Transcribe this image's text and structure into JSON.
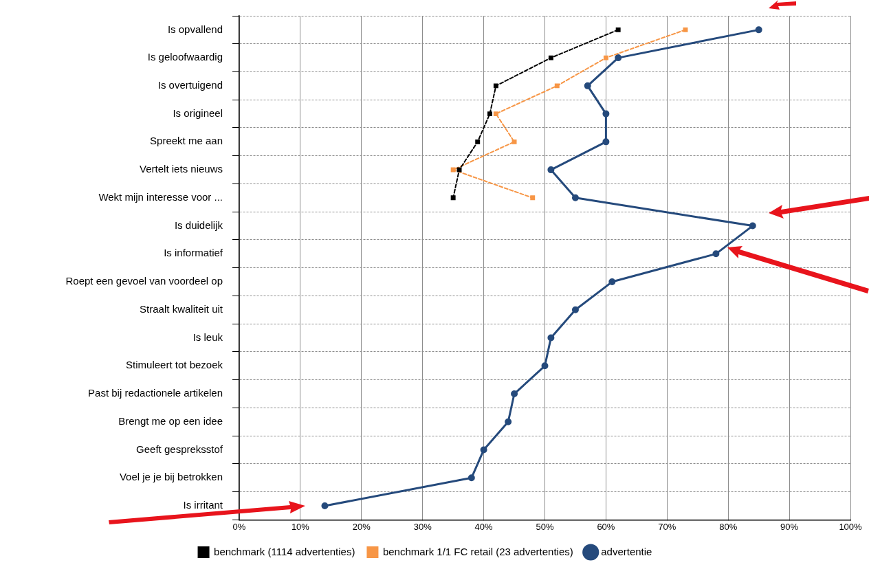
{
  "chart_data": {
    "type": "line",
    "orientation": "horizontal",
    "categories": [
      "Is opvallend",
      "Is geloofwaardig",
      "Is overtuigend",
      "Is origineel",
      "Spreekt me aan",
      "Vertelt iets nieuws",
      "Wekt mijn interesse voor ...",
      "Is duidelijk",
      "Is informatief",
      "Roept een gevoel van voordeel op",
      "Straalt kwaliteit uit",
      "Is leuk",
      "Stimuleert tot bezoek",
      "Past bij redactionele artikelen",
      "Brengt me op een idee",
      "Geeft gespreksstof",
      "Voel je je bij betrokken",
      "Is irritant"
    ],
    "series": [
      {
        "name": "benchmark (1114 advertenties)",
        "color": "#000000",
        "marker": "square",
        "line_style": "dashed",
        "values": [
          62,
          51,
          42,
          41,
          39,
          36,
          35,
          null,
          null,
          null,
          null,
          null,
          null,
          null,
          null,
          null,
          null,
          null
        ]
      },
      {
        "name": "benchmark 1/1 FC retail (23 advertenties)",
        "color": "#f79646",
        "marker": "square",
        "line_style": "dashed",
        "values": [
          73,
          60,
          52,
          42,
          45,
          35,
          48,
          null,
          null,
          null,
          null,
          null,
          null,
          null,
          null,
          null,
          null,
          null
        ]
      },
      {
        "name": "advertentie",
        "color": "#254a7c",
        "marker": "circle",
        "line_style": "solid",
        "values": [
          85,
          62,
          57,
          60,
          60,
          51,
          55,
          84,
          78,
          61,
          55,
          51,
          50,
          45,
          44,
          40,
          38,
          14
        ]
      }
    ],
    "xlim": [
      0,
      100
    ],
    "xticks": [
      {
        "value": 0,
        "label": "0%"
      },
      {
        "value": 10,
        "label": "10%"
      },
      {
        "value": 20,
        "label": "20%"
      },
      {
        "value": 30,
        "label": "30%"
      },
      {
        "value": 40,
        "label": "40%"
      },
      {
        "value": 50,
        "label": "50%"
      },
      {
        "value": 60,
        "label": "60%"
      },
      {
        "value": 70,
        "label": "70%"
      },
      {
        "value": 80,
        "label": "80%"
      },
      {
        "value": 90,
        "label": "90%"
      },
      {
        "value": 100,
        "label": "100%"
      }
    ],
    "grid": true,
    "legend": "bottom"
  }
}
